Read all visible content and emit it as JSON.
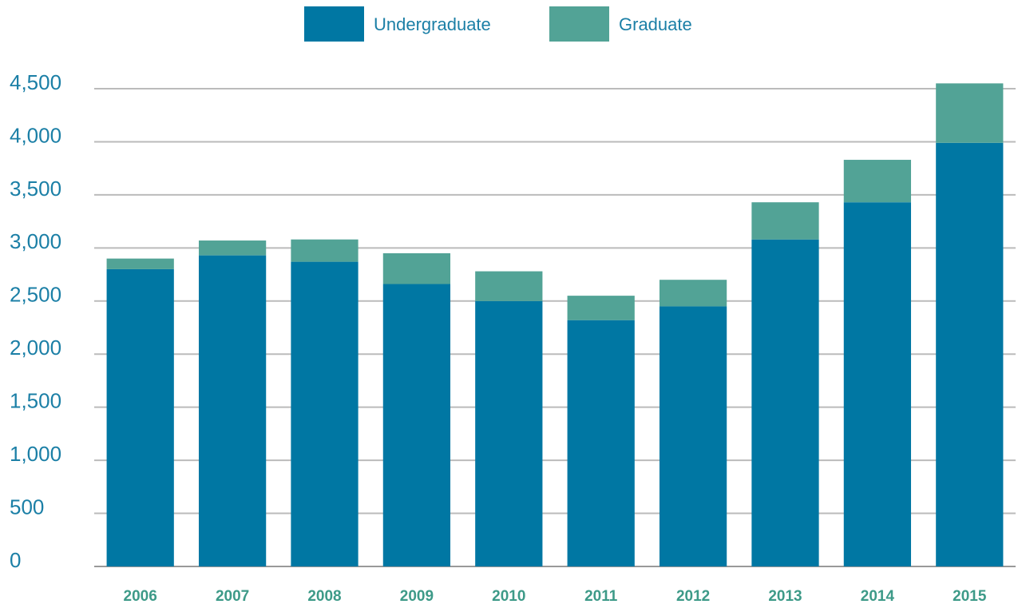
{
  "chart_data": {
    "type": "stacked_bar",
    "categories": [
      "2006",
      "2007",
      "2008",
      "2009",
      "2010",
      "2011",
      "2012",
      "2013",
      "2014",
      "2015"
    ],
    "series": [
      {
        "name": "Undergraduate",
        "color": "#0077a3",
        "values": [
          2800,
          2930,
          2870,
          2660,
          2500,
          2320,
          2450,
          3080,
          3430,
          3990
        ]
      },
      {
        "name": "Graduate",
        "color": "#52a396",
        "values": [
          100,
          140,
          210,
          290,
          280,
          230,
          250,
          350,
          400,
          560
        ]
      }
    ],
    "ylim": [
      0,
      4500
    ],
    "yticks": [
      0,
      500,
      {
        "value": 1000,
        "label": "1,000"
      },
      {
        "value": 1500,
        "label": "1,500"
      },
      {
        "value": 2000,
        "label": "2,000"
      },
      {
        "value": 2500,
        "label": "2,500"
      },
      {
        "value": 3000,
        "label": "3,000"
      },
      {
        "value": 3500,
        "label": "3,500"
      },
      {
        "value": 4000,
        "label": "4,000"
      },
      {
        "value": 4500,
        "label": "4,500"
      }
    ],
    "grid": true,
    "legend": "top"
  }
}
